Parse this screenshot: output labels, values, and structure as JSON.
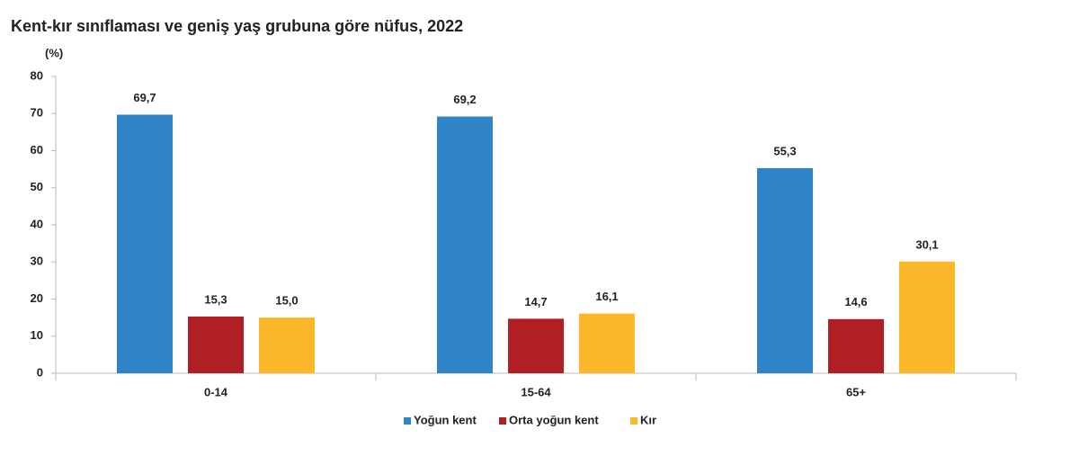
{
  "chart_data": {
    "type": "bar",
    "title": "Kent-kır sınıflaması ve geniş yaş grubuna göre nüfus, 2022",
    "y_label": "(%)",
    "categories": [
      "0-14",
      "15-64",
      "65+"
    ],
    "series": [
      {
        "name": "Yoğun kent",
        "color": "#2e84c6",
        "values": [
          69.7,
          69.2,
          55.3
        ],
        "value_labels": [
          "69,7",
          "69,2",
          "55,3"
        ]
      },
      {
        "name": "Orta yoğun kent",
        "color": "#b01f24",
        "values": [
          15.3,
          14.7,
          14.6
        ],
        "value_labels": [
          "15,3",
          "14,7",
          "14,6"
        ]
      },
      {
        "name": "Kır",
        "color": "#fbb829",
        "values": [
          15.0,
          16.1,
          30.1
        ],
        "value_labels": [
          "15,0",
          "16,1",
          "30,1"
        ]
      }
    ],
    "ylim": [
      0,
      80
    ],
    "yticks": [
      0,
      10,
      20,
      30,
      40,
      50,
      60,
      70,
      80
    ],
    "grid": false,
    "legend": "bottom"
  }
}
